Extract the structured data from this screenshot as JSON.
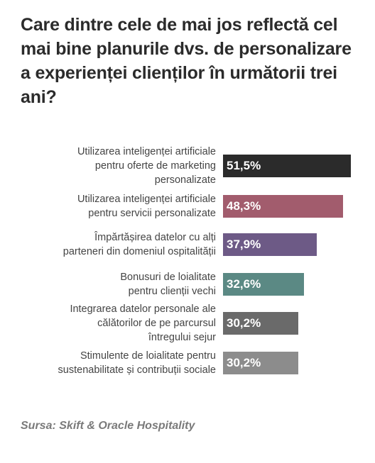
{
  "title": "Care dintre cele de mai jos reflectă cel mai bine planurile dvs. de personalizare a experienței clienților în următorii trei ani?",
  "source": "Sursa: Skift & Oracle Hospitality",
  "chart_data": {
    "type": "bar",
    "orientation": "horizontal",
    "categories": [
      "Utilizarea inteligenței artificiale pentru oferte de marketing personalizate",
      "Utilizarea inteligenței artificiale pentru servicii personalizate",
      "Împărtășirea datelor cu alți parteneri din domeniul ospitalității",
      "Bonusuri de loialitate pentru clienții vechi",
      "Integrarea datelor personale ale călătorilor de pe parcursul întregului sejur",
      "Stimulente de loialitate pentru sustenabilitate și contribuții sociale"
    ],
    "category_lines": [
      [
        "Utilizarea inteligenței artificiale",
        "pentru oferte de marketing",
        "personalizate"
      ],
      [
        "Utilizarea inteligenței artificiale",
        "pentru servicii personalizate"
      ],
      [
        "Împărtășirea datelor cu alți",
        "parteneri din domeniul ospitalității"
      ],
      [
        "Bonusuri de loialitate",
        "pentru clienții vechi"
      ],
      [
        "Integrarea datelor personale ale",
        "călătorilor de pe parcursul",
        "întregului sejur"
      ],
      [
        "Stimulente de loialitate pentru",
        "sustenabilitate și contribuții sociale"
      ]
    ],
    "values": [
      51.5,
      48.3,
      37.9,
      32.6,
      30.2,
      30.2
    ],
    "value_labels": [
      "51,5%",
      "48,3%",
      "37,9%",
      "32,6%",
      "30,2%",
      "30,2%"
    ],
    "colors": [
      "#2b2b2b",
      "#a25c6d",
      "#6d5a86",
      "#5b8984",
      "#6a6a6a",
      "#8c8c8c"
    ],
    "unit": "%",
    "xlim": [
      0,
      51.5
    ],
    "grid": false,
    "legend": "none"
  }
}
